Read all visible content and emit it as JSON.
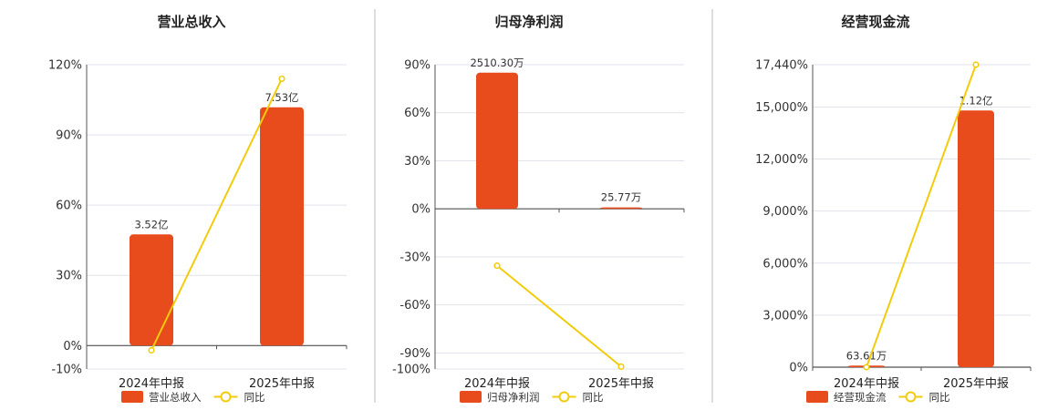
{
  "colors": {
    "bar": "#e84b1c",
    "line": "#f2cc0c",
    "grid": "#e2e2ec",
    "axis": "#555555",
    "divider": "#bbbbbb"
  },
  "chart_data": [
    {
      "type": "bar",
      "title": "营业总收入",
      "categories": [
        "2024年中报",
        "2025年中报"
      ],
      "series": [
        {
          "name": "营业总收入",
          "type": "bar",
          "values": [
            47.5,
            101.8
          ],
          "labels": [
            "3.52亿",
            "7.53亿"
          ]
        },
        {
          "name": "同比",
          "type": "line",
          "values": [
            -2.0,
            114.0
          ]
        }
      ],
      "ylim": [
        -10,
        120
      ],
      "yticks": [
        -10,
        0,
        30,
        60,
        90,
        120
      ],
      "ytick_labels": [
        "-10%",
        "0%",
        "30%",
        "60%",
        "90%",
        "120%"
      ],
      "grid": true,
      "legend": "bottom"
    },
    {
      "type": "bar",
      "title": "归母净利润",
      "categories": [
        "2024年中报",
        "2025年中报"
      ],
      "series": [
        {
          "name": "归母净利润",
          "type": "bar",
          "values": [
            85,
            0.9
          ],
          "labels": [
            "2510.30万",
            "25.77万"
          ]
        },
        {
          "name": "同比",
          "type": "line",
          "values": [
            -35.5,
            -98.5
          ]
        }
      ],
      "ylim": [
        -100,
        90
      ],
      "yticks": [
        -100,
        -90,
        -60,
        -30,
        0,
        30,
        60,
        90
      ],
      "ytick_labels": [
        "-100%",
        "-90%",
        "-60%",
        "-30%",
        "0%",
        "30%",
        "60%",
        "90%"
      ],
      "grid": true,
      "legend": "bottom"
    },
    {
      "type": "bar",
      "title": "经营现金流",
      "categories": [
        "2024年中报",
        "2025年中报"
      ],
      "series": [
        {
          "name": "经营现金流",
          "type": "bar",
          "values": [
            90,
            14800
          ],
          "labels": [
            "63.61万",
            "1.12亿"
          ]
        },
        {
          "name": "同比",
          "type": "line",
          "values": [
            0,
            17440
          ]
        }
      ],
      "ylim": [
        0,
        17440
      ],
      "yticks": [
        0,
        3000,
        6000,
        9000,
        12000,
        15000,
        17440
      ],
      "ytick_labels": [
        "0%",
        "3,000%",
        "6,000%",
        "9,000%",
        "12,000%",
        "15,000%",
        "17,440%"
      ],
      "grid": true,
      "legend": "bottom"
    }
  ]
}
